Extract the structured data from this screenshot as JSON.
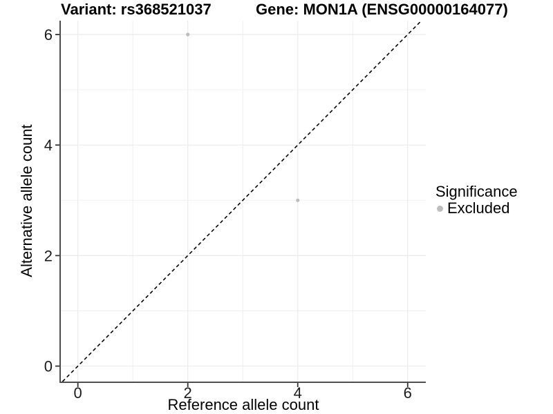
{
  "titles": {
    "left": "Variant: rs368521037",
    "right": "Gene: MON1A (ENSG00000164077)"
  },
  "legend": {
    "title": "Significance",
    "entries": [
      {
        "label": "Excluded",
        "color": "#bdbdbd"
      }
    ]
  },
  "chart_data": {
    "type": "scatter",
    "title": "Variant: rs368521037 — Gene: MON1A (ENSG00000164077)",
    "xlabel": "Reference allele count",
    "ylabel": "Alternative allele count",
    "series": [
      {
        "name": "Excluded",
        "color": "#bdbdbd",
        "points": [
          [
            2,
            6
          ],
          [
            4,
            3
          ]
        ]
      }
    ],
    "x_breaks": [
      0,
      2,
      4,
      6
    ],
    "y_breaks": [
      0,
      2,
      4,
      6
    ],
    "x_tick_labels": [
      "0",
      "2",
      "4",
      "6"
    ],
    "y_tick_labels": [
      "0",
      "2",
      "4",
      "6"
    ],
    "x_minor_breaks": [
      1,
      3,
      5
    ],
    "y_minor_breaks": [
      1,
      3,
      5
    ],
    "xlim": [
      -0.31,
      6.33
    ],
    "ylim": [
      -0.28,
      6.25
    ],
    "identity_line": {
      "slope": 1,
      "intercept": 0,
      "style": "dashed",
      "color": "#000000"
    },
    "grid": true,
    "legend_position": "right",
    "colors": {
      "grid_major": "#ebebeb",
      "grid_minor": "#f0f0f0",
      "axis_line": "#4d4d4d",
      "tick_mark": "#333333",
      "tick_label": "#1a1a1a",
      "point": "#bdbdbd"
    }
  }
}
